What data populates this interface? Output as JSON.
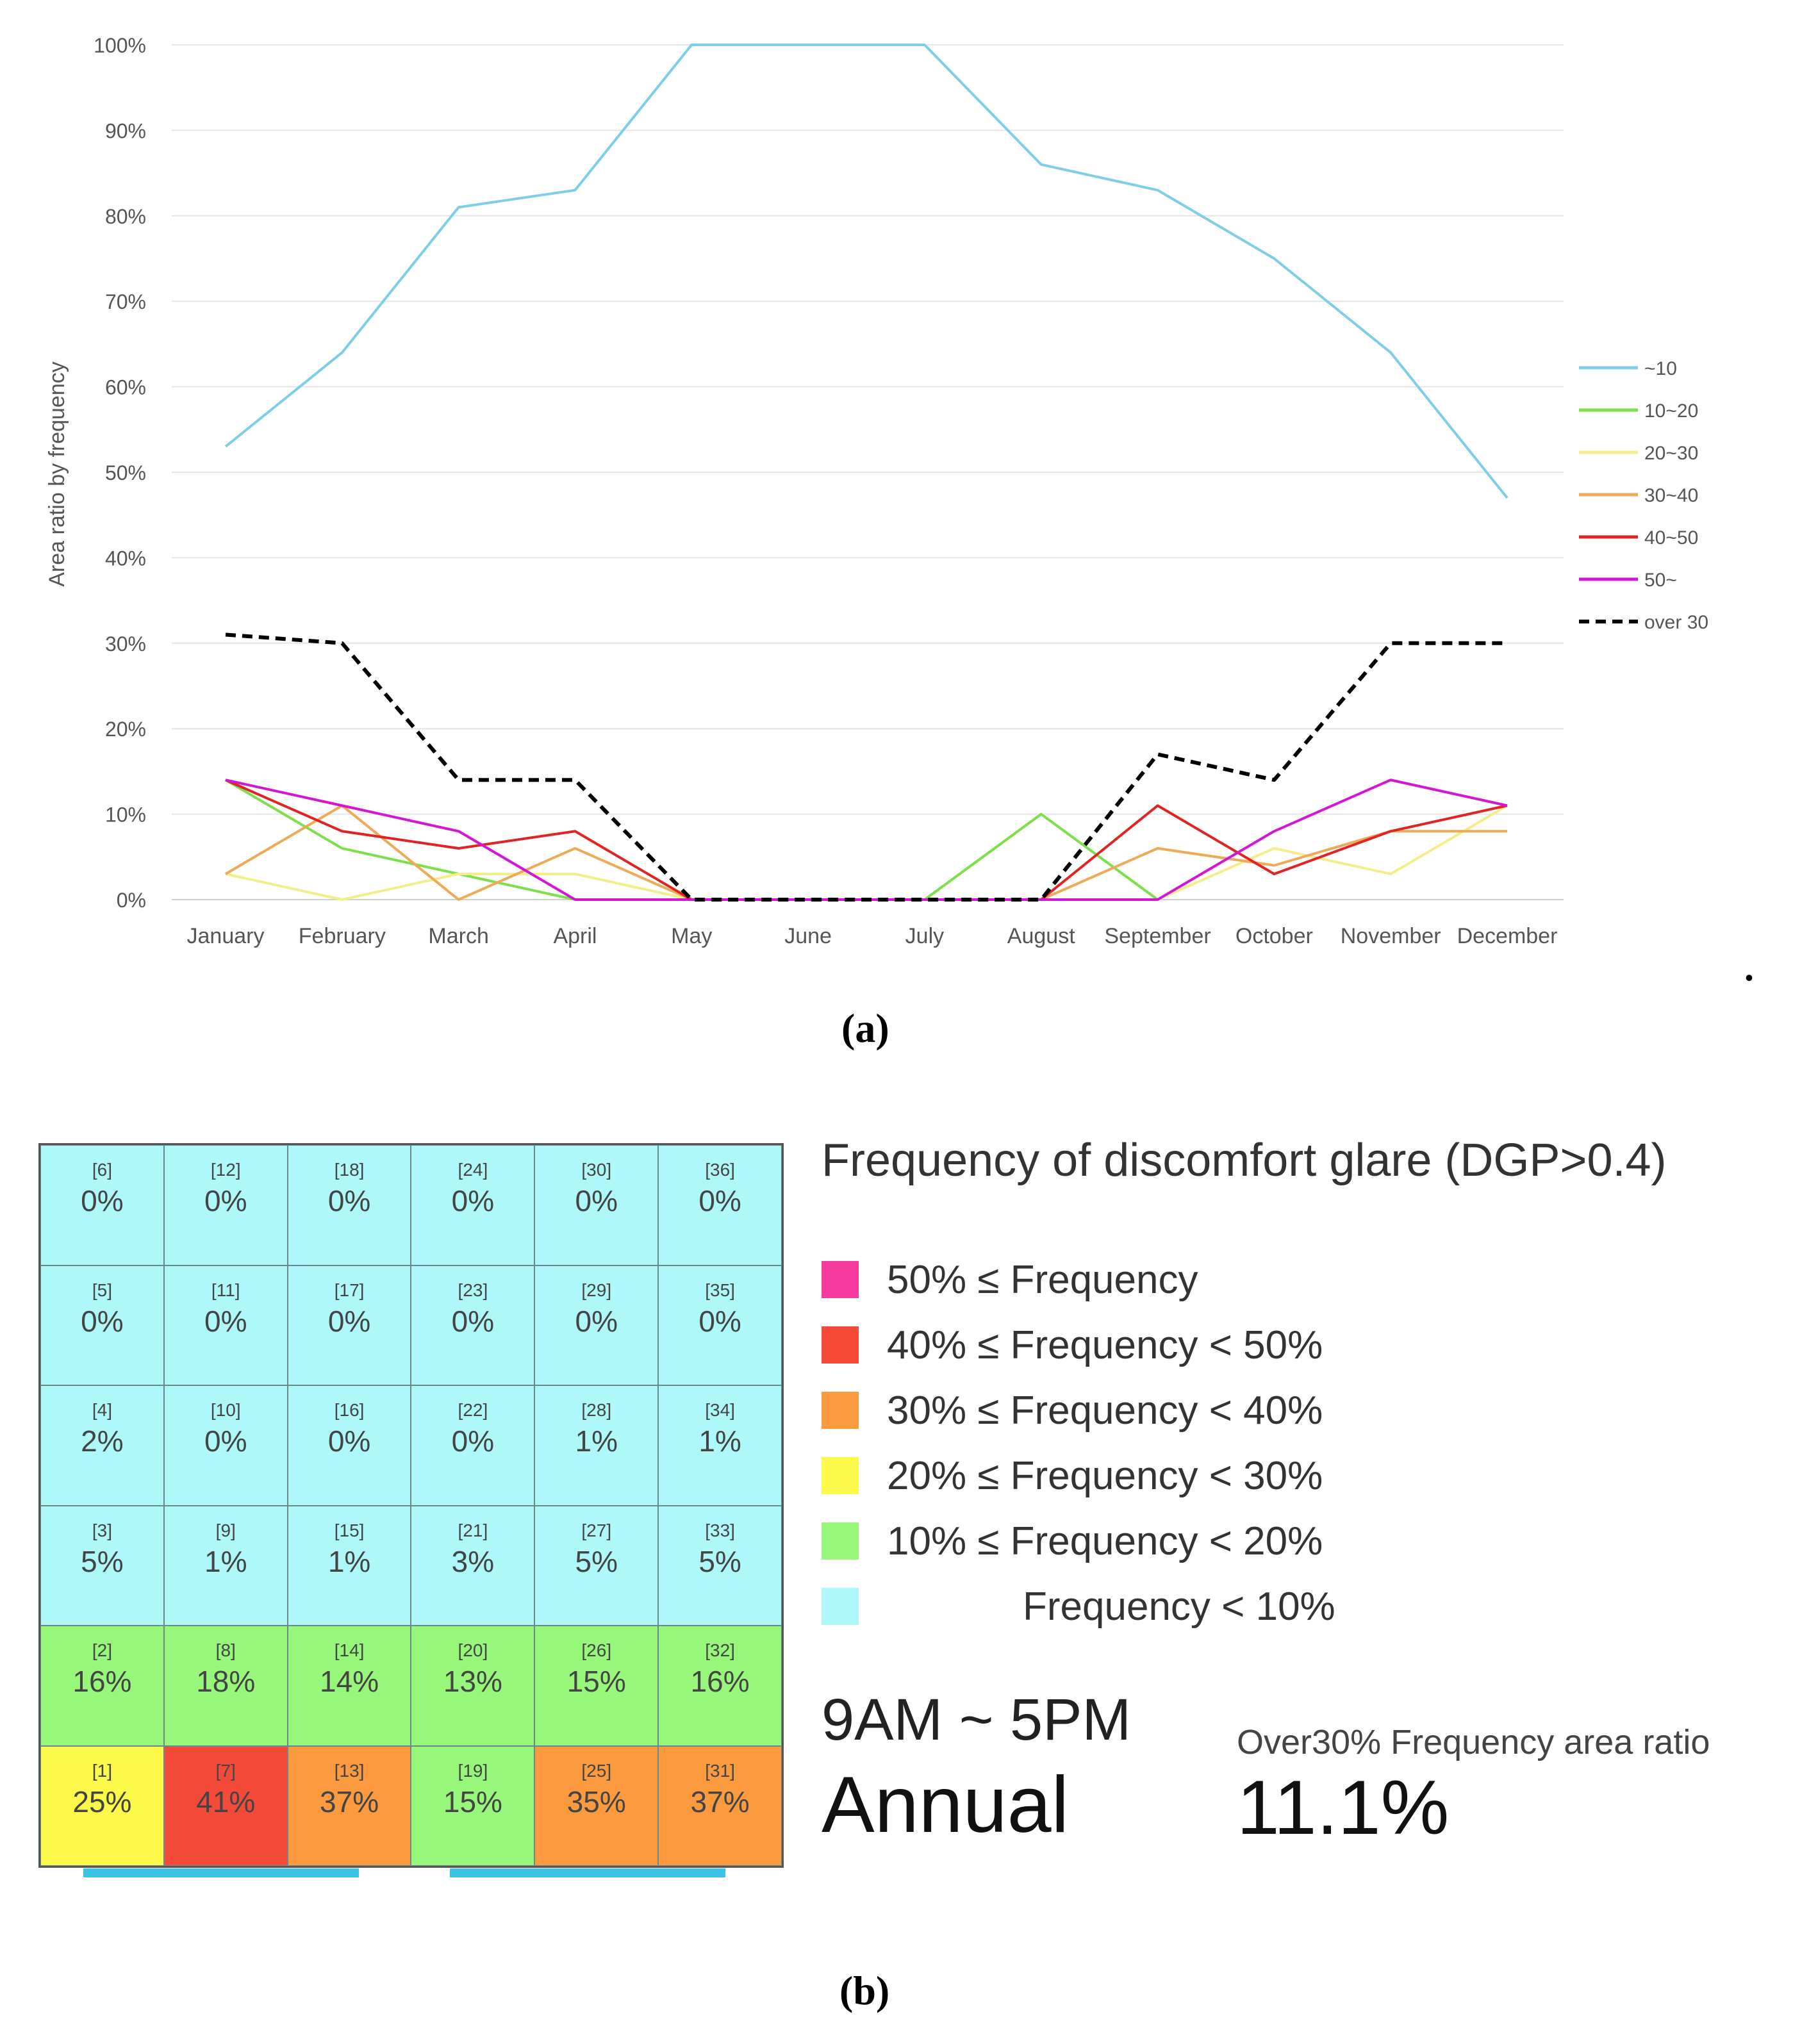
{
  "chart_data": {
    "type": "line",
    "title": "",
    "xlabel": "",
    "ylabel": "Area ratio by frequency",
    "ylim": [
      0,
      100
    ],
    "yticks": [
      "0%",
      "10%",
      "20%",
      "30%",
      "40%",
      "50%",
      "60%",
      "70%",
      "80%",
      "90%",
      "100%"
    ],
    "categories": [
      "January",
      "February",
      "March",
      "April",
      "May",
      "June",
      "July",
      "August",
      "September",
      "October",
      "November",
      "December"
    ],
    "series": [
      {
        "name": "~10",
        "color": "#7ecfe6",
        "dashed": false,
        "values": [
          53,
          64,
          81,
          83,
          100,
          100,
          100,
          86,
          83,
          75,
          64,
          47
        ]
      },
      {
        "name": "10~20",
        "color": "#7de04a",
        "dashed": false,
        "values": [
          14,
          6,
          3,
          0,
          0,
          0,
          0,
          10,
          0,
          null,
          null,
          null
        ]
      },
      {
        "name": "20~30",
        "color": "#f4ee8a",
        "dashed": false,
        "values": [
          3,
          0,
          3,
          3,
          0,
          0,
          0,
          0,
          0,
          6,
          3,
          11
        ]
      },
      {
        "name": "30~40",
        "color": "#efaa58",
        "dashed": false,
        "values": [
          3,
          11,
          0,
          6,
          0,
          0,
          0,
          0,
          6,
          4,
          8,
          8
        ]
      },
      {
        "name": "40~50",
        "color": "#e02424",
        "dashed": false,
        "values": [
          14,
          8,
          6,
          8,
          0,
          0,
          0,
          0,
          11,
          3,
          8,
          11
        ]
      },
      {
        "name": "50~",
        "color": "#d416d4",
        "dashed": false,
        "values": [
          14,
          11,
          8,
          0,
          0,
          0,
          0,
          0,
          0,
          8,
          14,
          11
        ]
      },
      {
        "name": "over 30",
        "color": "#000000",
        "dashed": true,
        "values": [
          31,
          30,
          14,
          14,
          0,
          0,
          0,
          0,
          17,
          14,
          30,
          30
        ]
      }
    ],
    "legend_position": "right"
  },
  "captions": {
    "a": "(a)",
    "b": "(b)"
  },
  "stray_dot": ".",
  "grid_map": {
    "rows": [
      [
        {
          "id": "[6]",
          "value": "0%",
          "color": "#aef8fa"
        },
        {
          "id": "[12]",
          "value": "0%",
          "color": "#aef8fa"
        },
        {
          "id": "[18]",
          "value": "0%",
          "color": "#aef8fa"
        },
        {
          "id": "[24]",
          "value": "0%",
          "color": "#aef8fa"
        },
        {
          "id": "[30]",
          "value": "0%",
          "color": "#aef8fa"
        },
        {
          "id": "[36]",
          "value": "0%",
          "color": "#aef8fa"
        }
      ],
      [
        {
          "id": "[5]",
          "value": "0%",
          "color": "#aef8fa"
        },
        {
          "id": "[11]",
          "value": "0%",
          "color": "#aef8fa"
        },
        {
          "id": "[17]",
          "value": "0%",
          "color": "#aef8fa"
        },
        {
          "id": "[23]",
          "value": "0%",
          "color": "#aef8fa"
        },
        {
          "id": "[29]",
          "value": "0%",
          "color": "#aef8fa"
        },
        {
          "id": "[35]",
          "value": "0%",
          "color": "#aef8fa"
        }
      ],
      [
        {
          "id": "[4]",
          "value": "2%",
          "color": "#aef8fa"
        },
        {
          "id": "[10]",
          "value": "0%",
          "color": "#aef8fa"
        },
        {
          "id": "[16]",
          "value": "0%",
          "color": "#aef8fa"
        },
        {
          "id": "[22]",
          "value": "0%",
          "color": "#aef8fa"
        },
        {
          "id": "[28]",
          "value": "1%",
          "color": "#aef8fa"
        },
        {
          "id": "[34]",
          "value": "1%",
          "color": "#aef8fa"
        }
      ],
      [
        {
          "id": "[3]",
          "value": "5%",
          "color": "#aef8fa"
        },
        {
          "id": "[9]",
          "value": "1%",
          "color": "#aef8fa"
        },
        {
          "id": "[15]",
          "value": "1%",
          "color": "#aef8fa"
        },
        {
          "id": "[21]",
          "value": "3%",
          "color": "#aef8fa"
        },
        {
          "id": "[27]",
          "value": "5%",
          "color": "#aef8fa"
        },
        {
          "id": "[33]",
          "value": "5%",
          "color": "#aef8fa"
        }
      ],
      [
        {
          "id": "[2]",
          "value": "16%",
          "color": "#97f77a"
        },
        {
          "id": "[8]",
          "value": "18%",
          "color": "#97f77a"
        },
        {
          "id": "[14]",
          "value": "14%",
          "color": "#97f77a"
        },
        {
          "id": "[20]",
          "value": "13%",
          "color": "#97f77a"
        },
        {
          "id": "[26]",
          "value": "15%",
          "color": "#97f77a"
        },
        {
          "id": "[32]",
          "value": "16%",
          "color": "#97f77a"
        }
      ],
      [
        {
          "id": "[1]",
          "value": "25%",
          "color": "#fbf94a"
        },
        {
          "id": "[7]",
          "value": "41%",
          "color": "#f34a3a"
        },
        {
          "id": "[13]",
          "value": "37%",
          "color": "#fb9a3e"
        },
        {
          "id": "[19]",
          "value": "15%",
          "color": "#97f77a"
        },
        {
          "id": "[25]",
          "value": "35%",
          "color": "#fb9a3e"
        },
        {
          "id": "[31]",
          "value": "37%",
          "color": "#fb9a3e"
        }
      ]
    ]
  },
  "legend_b": {
    "title": "Frequency of discomfort glare (DGP>0.4)",
    "items": [
      {
        "label": "50% ≤ Frequency",
        "color": "#f53b9e"
      },
      {
        "label": "40% ≤ Frequency < 50%",
        "color": "#f54a36"
      },
      {
        "label": "30% ≤ Frequency < 40%",
        "color": "#fb9a3e"
      },
      {
        "label": "20% ≤ Frequency < 30%",
        "color": "#fbf94a"
      },
      {
        "label": "10% ≤ Frequency < 20%",
        "color": "#97f77a"
      },
      {
        "label": "Frequency < 10%",
        "color": "#aef8fa"
      }
    ]
  },
  "summary": {
    "period": "9AM ~ 5PM",
    "annual": "Annual",
    "ratio_label": "Over30% Frequency area ratio",
    "ratio_value": "11.1%"
  }
}
